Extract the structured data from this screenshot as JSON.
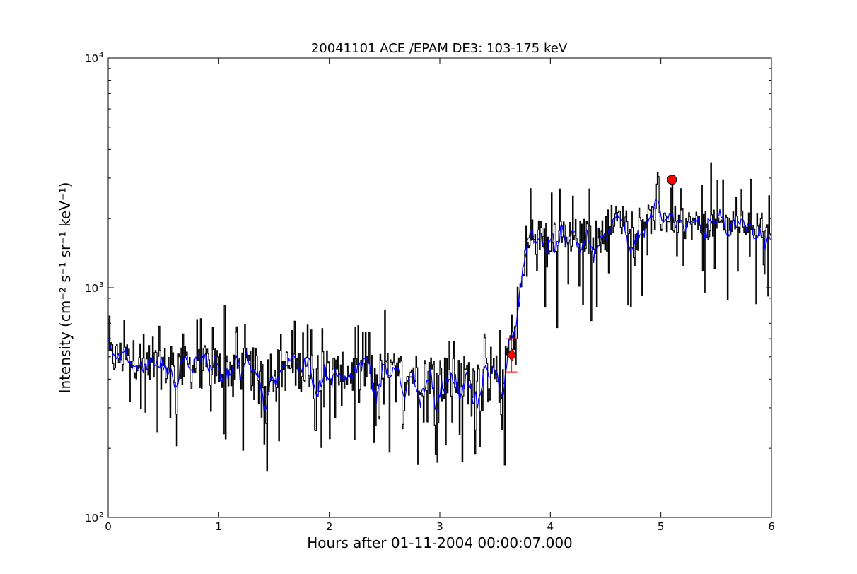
{
  "chart_data": {
    "type": "line",
    "title": "20041101 ACE /EPAM DE3: 103-175 keV",
    "xlabel": "Hours after 01-11-2004 00:00:07.000",
    "ylabel": "Intensity (cm⁻² s⁻¹ sr⁻¹ keV⁻¹)",
    "xlim": [
      0,
      6
    ],
    "ylim": [
      100,
      10000
    ],
    "yscale": "log",
    "grid": false,
    "x_ticks": [
      0,
      1,
      2,
      3,
      4,
      5,
      6
    ],
    "x_tick_labels": [
      "0",
      "1",
      "2",
      "3",
      "4",
      "5",
      "6"
    ],
    "y_ticks": [
      100,
      1000,
      10000
    ],
    "y_tick_labels": [
      {
        "base": "10",
        "exp": "2"
      },
      {
        "base": "10",
        "exp": "3"
      },
      {
        "base": "10",
        "exp": "4"
      }
    ],
    "series": [
      {
        "color": "#000000",
        "style": "steps",
        "segments": [
          {
            "x0": 0.0,
            "x1": 0.3,
            "level": 500,
            "noise": 0.2,
            "spike_down": 0.1,
            "spike_up": 0.05
          },
          {
            "x0": 0.3,
            "x1": 1.0,
            "level": 460,
            "noise": 0.22,
            "spike_down": 0.12,
            "spike_up": 0.08
          },
          {
            "x0": 1.0,
            "x1": 2.0,
            "level": 450,
            "noise": 0.22,
            "spike_down": 0.12,
            "spike_up": 0.08
          },
          {
            "x0": 2.0,
            "x1": 3.0,
            "level": 430,
            "noise": 0.22,
            "spike_down": 0.12,
            "spike_up": 0.06
          },
          {
            "x0": 3.0,
            "x1": 3.6,
            "level": 410,
            "noise": 0.25,
            "spike_down": 0.15,
            "spike_up": 0.06
          },
          {
            "x0": 3.6,
            "x1": 3.85,
            "level_start": 480,
            "level_end": 1900,
            "noise": 0.25,
            "spike_down": 0.05,
            "spike_up": 0.1
          },
          {
            "x0": 3.85,
            "x1": 4.5,
            "level": 1700,
            "noise": 0.18,
            "spike_down": 0.12,
            "spike_up": 0.05
          },
          {
            "x0": 4.5,
            "x1": 5.2,
            "level": 2000,
            "noise": 0.15,
            "spike_down": 0.1,
            "spike_up": 0.05
          },
          {
            "x0": 5.2,
            "x1": 6.0,
            "level": 1900,
            "noise": 0.15,
            "spike_down": 0.1,
            "spike_up": 0.08
          }
        ],
        "notable_points": [
          {
            "x": 1.05,
            "y": 840
          },
          {
            "x": 1.43,
            "y": 160
          },
          {
            "x": 2.5,
            "y": 800
          },
          {
            "x": 2.8,
            "y": 170
          },
          {
            "x": 3.2,
            "y": 175
          },
          {
            "x": 3.82,
            "y": 2700
          },
          {
            "x": 4.06,
            "y": 670
          },
          {
            "x": 5.45,
            "y": 3500
          },
          {
            "x": 5.56,
            "y": 2950
          },
          {
            "x": 5.6,
            "y": 890
          },
          {
            "x": 5.97,
            "y": 920
          }
        ]
      },
      {
        "color": "#0000ff",
        "style": "line",
        "smoothing": 3
      }
    ],
    "markers": [
      {
        "kind": "diamond",
        "x": 3.65,
        "y": 510,
        "color": "#ff0000",
        "error_low": 430,
        "error_high": 600
      },
      {
        "kind": "circle",
        "x": 5.1,
        "y": 2950,
        "color": "#ff0000"
      }
    ]
  }
}
